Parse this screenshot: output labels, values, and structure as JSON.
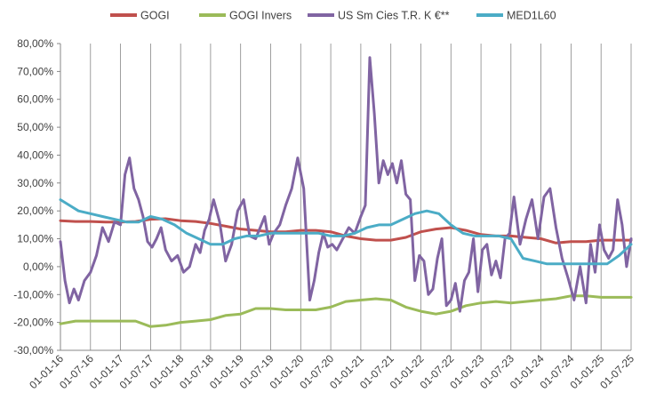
{
  "chart_data": {
    "type": "line",
    "title": "",
    "xlabel": "",
    "ylabel": "",
    "ylim": [
      -30,
      80
    ],
    "y_ticks": [
      -30,
      -20,
      -10,
      0,
      10,
      20,
      30,
      40,
      50,
      60,
      70,
      80
    ],
    "y_tick_labels": [
      "-30,00%",
      "-20,00%",
      "-10,00%",
      "0,00%",
      "10,00%",
      "20,00%",
      "30,00%",
      "40,00%",
      "50,00%",
      "60,00%",
      "70,00%",
      "80,00%"
    ],
    "x_range": [
      0,
      19
    ],
    "x_tick_labels": [
      "01-01-16",
      "01-07-16",
      "01-01-17",
      "01-07-17",
      "01-01-18",
      "01-07-18",
      "01-01-19",
      "01-07-19",
      "01-01-20",
      "01-07-20",
      "01-01-21",
      "01-07-21",
      "01-01-22",
      "01-07-22",
      "01-01-23",
      "01-07-23",
      "01-01-24",
      "01-07-24",
      "01-01-25",
      "01-07-25"
    ],
    "grid": "vertical",
    "legend_position": "top",
    "series": [
      {
        "name": "GOGI",
        "color": "#c0504d",
        "x": [
          0,
          0.5,
          1,
          1.5,
          2,
          2.5,
          3,
          3.5,
          4,
          4.5,
          5,
          5.5,
          6,
          6.5,
          7,
          7.5,
          8,
          8.5,
          9,
          9.5,
          10,
          10.5,
          11,
          11.5,
          12,
          12.5,
          13,
          13.5,
          14,
          14.5,
          15,
          15.5,
          16,
          16.5,
          17,
          17.5,
          18,
          18.5,
          19
        ],
        "values": [
          16.5,
          16.2,
          16.2,
          16.0,
          16.0,
          16.2,
          17.0,
          17.2,
          16.5,
          16.2,
          15.5,
          14.5,
          13.5,
          13.0,
          12.5,
          12.5,
          13.0,
          13.0,
          12.5,
          11.0,
          10.0,
          9.5,
          9.5,
          10.5,
          12.5,
          13.5,
          14.0,
          13.0,
          11.5,
          11.0,
          11.0,
          10.5,
          10.0,
          8.5,
          9.0,
          9.0,
          9.5,
          9.5,
          9.5
        ]
      },
      {
        "name": "GOGI Invers",
        "color": "#9bbb59",
        "x": [
          0,
          0.5,
          1,
          1.5,
          2,
          2.5,
          3,
          3.5,
          4,
          4.5,
          5,
          5.5,
          6,
          6.5,
          7,
          7.5,
          8,
          8.5,
          9,
          9.5,
          10,
          10.5,
          11,
          11.5,
          12,
          12.5,
          13,
          13.5,
          14,
          14.5,
          15,
          15.5,
          16,
          16.5,
          17,
          17.5,
          18,
          18.5,
          19
        ],
        "values": [
          -20.5,
          -19.5,
          -19.5,
          -19.5,
          -19.5,
          -19.5,
          -21.5,
          -21.0,
          -20.0,
          -19.5,
          -19.0,
          -17.5,
          -17.0,
          -15.0,
          -15.0,
          -15.5,
          -15.5,
          -15.5,
          -14.5,
          -12.5,
          -12.0,
          -11.5,
          -12.0,
          -14.5,
          -16.0,
          -17.0,
          -16.0,
          -14.0,
          -13.0,
          -12.5,
          -13.0,
          -12.5,
          -12.0,
          -11.5,
          -10.5,
          -10.5,
          -11.0,
          -11.0,
          -11.0
        ]
      },
      {
        "name": "US Sm Cies T.R. K €**",
        "color": "#8064a2",
        "x": [
          0,
          0.15,
          0.3,
          0.45,
          0.6,
          0.8,
          1.0,
          1.2,
          1.4,
          1.6,
          1.8,
          2.0,
          2.15,
          2.3,
          2.45,
          2.6,
          2.75,
          2.9,
          3.05,
          3.2,
          3.35,
          3.5,
          3.7,
          3.9,
          4.1,
          4.3,
          4.5,
          4.65,
          4.8,
          4.95,
          5.1,
          5.3,
          5.5,
          5.7,
          5.9,
          6.1,
          6.3,
          6.5,
          6.65,
          6.8,
          6.95,
          7.1,
          7.3,
          7.5,
          7.7,
          7.9,
          8.1,
          8.3,
          8.45,
          8.6,
          8.75,
          8.9,
          9.05,
          9.2,
          9.4,
          9.6,
          9.8,
          10.0,
          10.15,
          10.3,
          10.45,
          10.6,
          10.75,
          10.9,
          11.05,
          11.2,
          11.35,
          11.5,
          11.65,
          11.8,
          11.95,
          12.1,
          12.25,
          12.4,
          12.55,
          12.7,
          12.85,
          13.0,
          13.15,
          13.3,
          13.45,
          13.6,
          13.75,
          13.9,
          14.05,
          14.2,
          14.35,
          14.5,
          14.65,
          14.8,
          14.95,
          15.1,
          15.3,
          15.5,
          15.7,
          15.9,
          16.1,
          16.3,
          16.5,
          16.7,
          16.9,
          17.1,
          17.3,
          17.5,
          17.65,
          17.8,
          17.95,
          18.1,
          18.25,
          18.4,
          18.55,
          18.7,
          18.85,
          19.0
        ],
        "values": [
          9,
          -5,
          -13,
          -8,
          -12,
          -5,
          -2,
          4,
          14,
          9,
          16,
          15,
          33,
          39,
          28,
          24,
          18,
          9,
          7,
          10,
          14,
          6,
          2,
          4,
          -2,
          0,
          8,
          5,
          13,
          17,
          24,
          16,
          2,
          8,
          20,
          24,
          11,
          10,
          14,
          18,
          8,
          12,
          15,
          22,
          28,
          39,
          28,
          -12,
          -5,
          5,
          12,
          7,
          8,
          6,
          10,
          14,
          12,
          18,
          22,
          75,
          55,
          30,
          38,
          33,
          37,
          30,
          38,
          26,
          24,
          -5,
          4,
          2,
          -10,
          -8,
          3,
          10,
          -14,
          -12,
          -6,
          -16,
          -5,
          -2,
          10,
          -9,
          6,
          8,
          -3,
          2,
          -4,
          10,
          12,
          25,
          8,
          17,
          24,
          10,
          25,
          28,
          14,
          3,
          -4,
          -12,
          0,
          -13,
          8,
          -2,
          15,
          6,
          3,
          6,
          24,
          15,
          0,
          10
        ]
      },
      {
        "name": "MED1L60",
        "color": "#4bacc6",
        "x": [
          0,
          0.3,
          0.6,
          1.0,
          1.4,
          1.8,
          2.2,
          2.6,
          3.0,
          3.4,
          3.8,
          4.2,
          4.6,
          5.0,
          5.4,
          5.8,
          6.2,
          6.6,
          7.0,
          7.4,
          7.8,
          8.2,
          8.6,
          9.0,
          9.4,
          9.8,
          10.2,
          10.6,
          11.0,
          11.4,
          11.8,
          12.2,
          12.6,
          13.0,
          13.4,
          13.8,
          14.2,
          14.6,
          15.0,
          15.4,
          15.8,
          16.2,
          16.6,
          17.0,
          17.4,
          17.8,
          18.2,
          18.6,
          19.0
        ],
        "values": [
          24,
          22,
          20,
          19,
          18,
          17,
          16,
          16,
          18,
          17,
          15,
          12,
          10,
          8,
          8,
          10,
          11,
          11,
          12,
          12,
          12,
          12,
          12,
          11,
          11,
          12,
          14,
          15,
          15,
          17,
          19,
          20,
          19,
          15,
          12,
          11,
          11,
          11,
          10,
          3,
          2,
          1,
          1,
          1,
          1,
          1,
          1,
          4,
          8
        ]
      }
    ]
  }
}
